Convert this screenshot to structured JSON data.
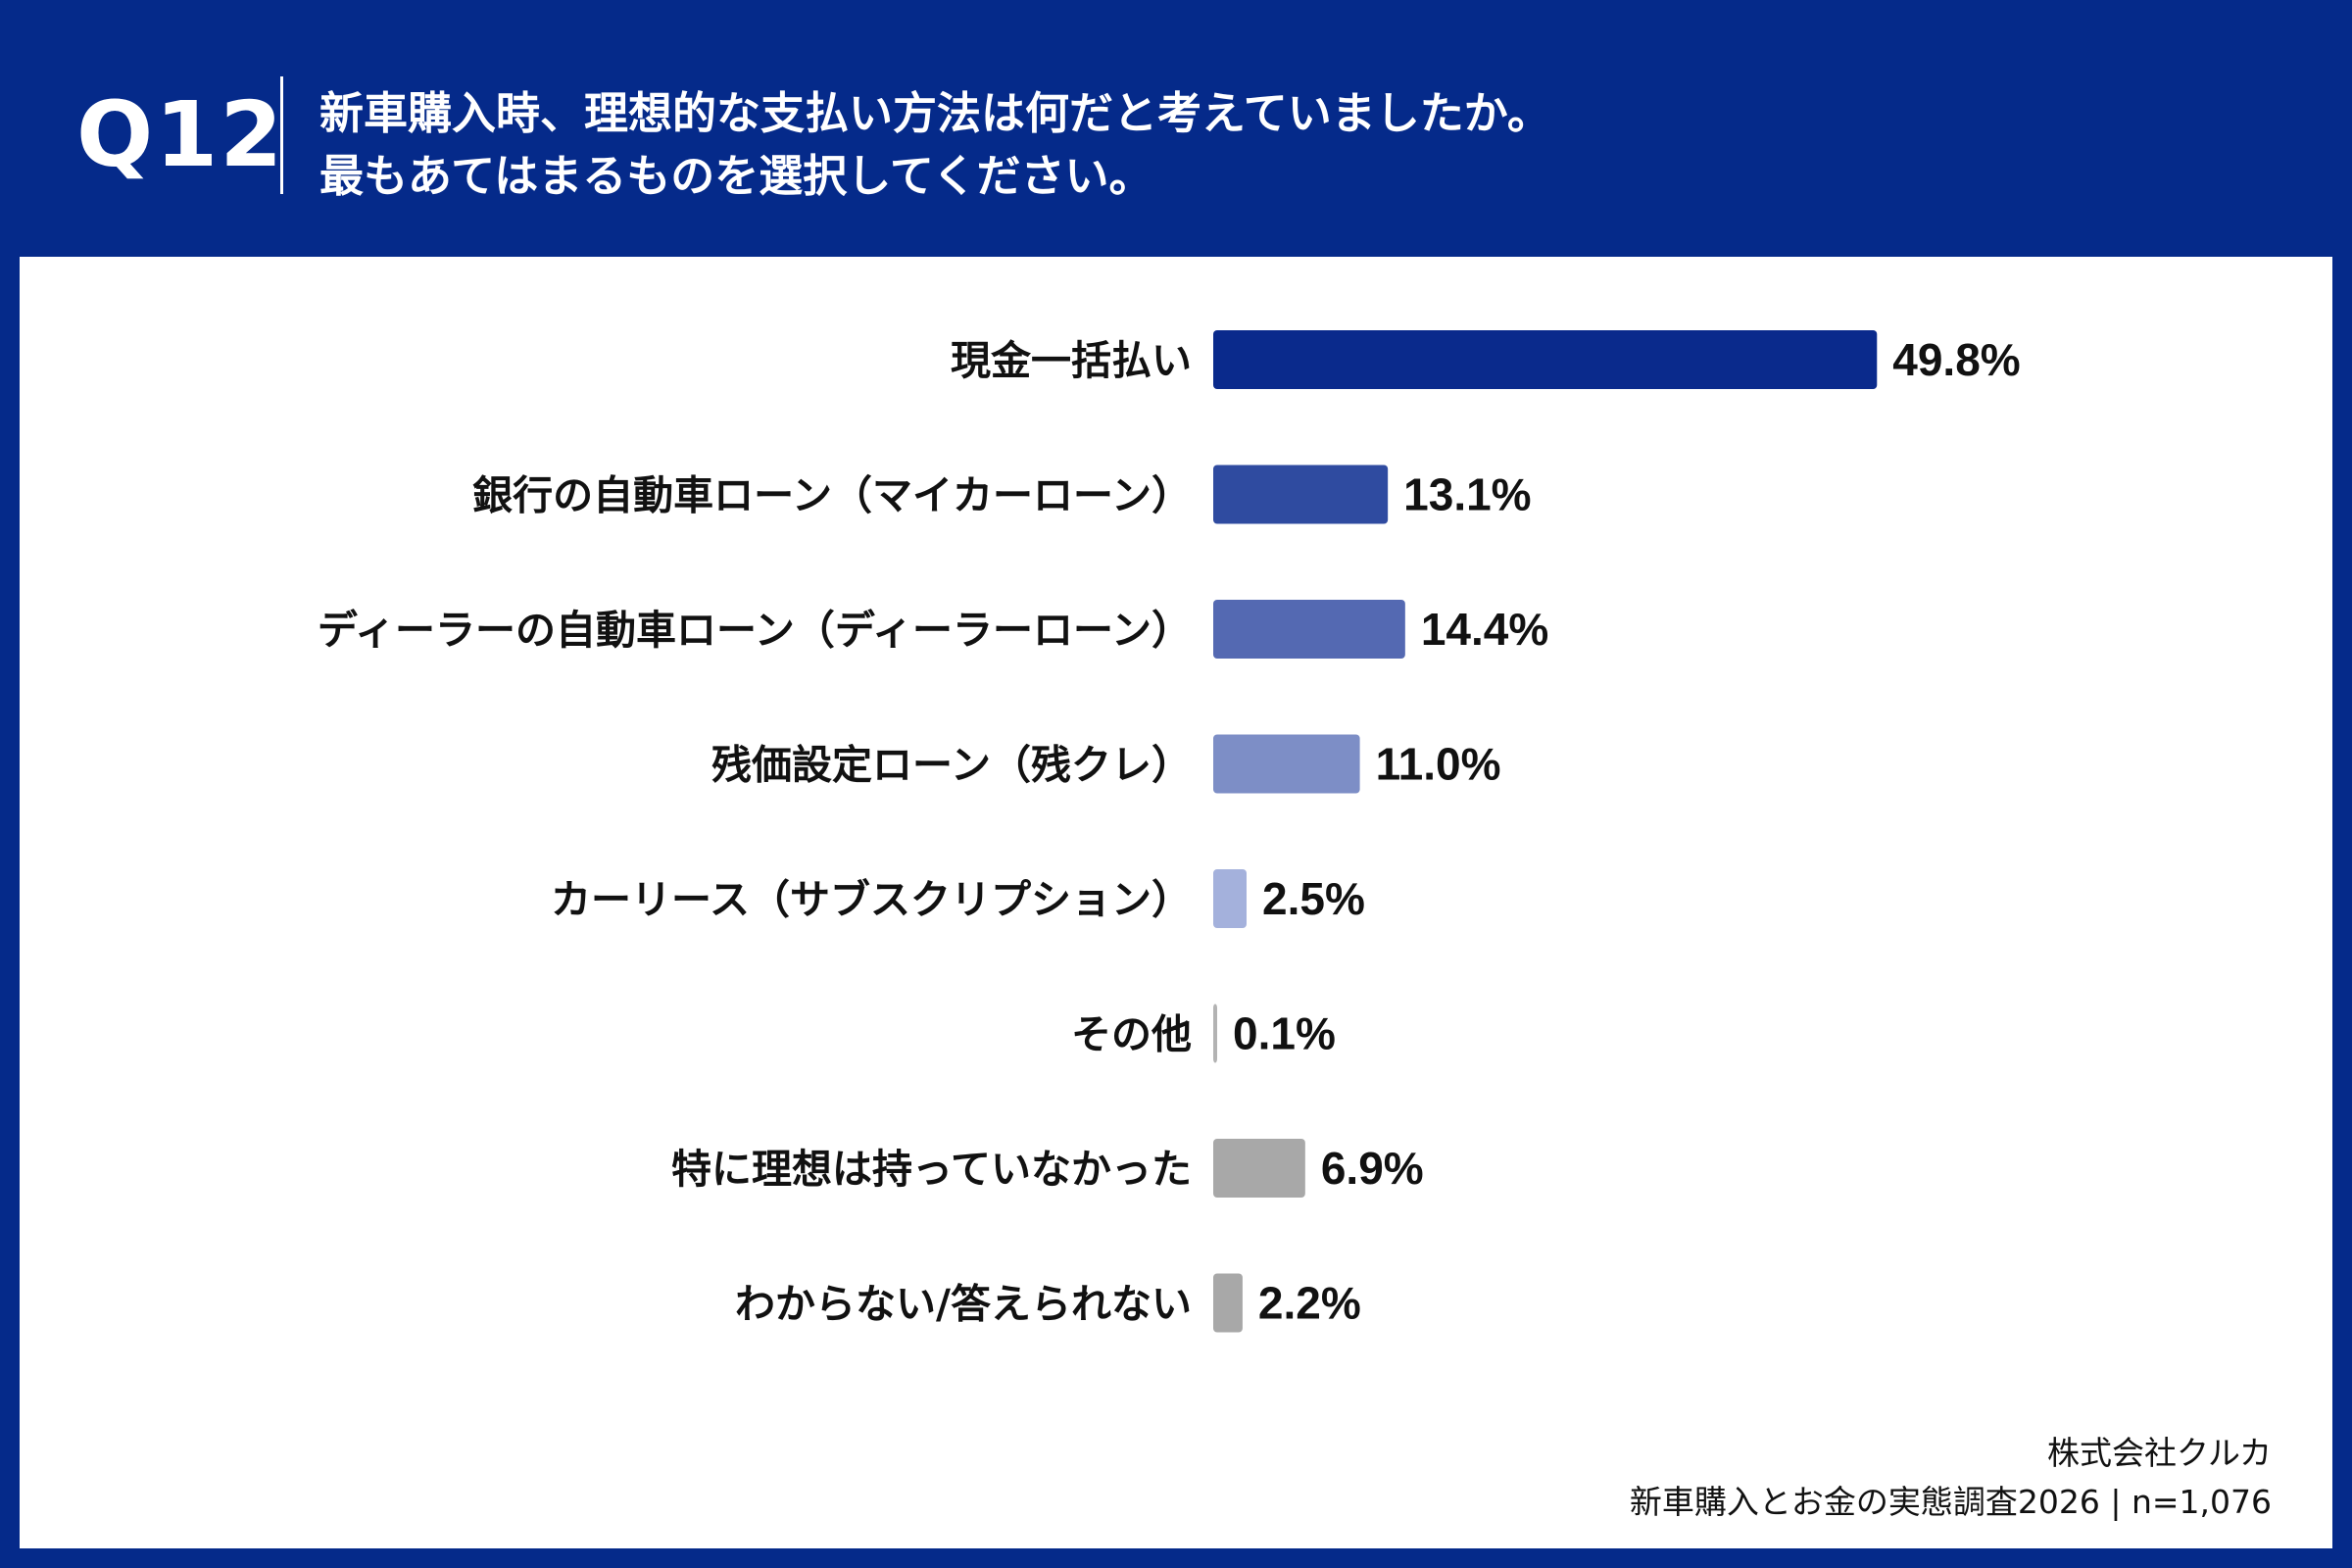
{
  "header": {
    "question_number": "Q12",
    "question_line1": "新車購入時、理想的な支払い方法は何だと考えていましたか。",
    "question_line2": "最もあてはまるものを選択してください。"
  },
  "chart_data": {
    "type": "bar",
    "orientation": "horizontal",
    "categories": [
      "現金一括払い",
      "銀行の自動車ローン（マイカーローン）",
      "ディーラーの自動車ローン（ディーラーローン）",
      "残価設定ローン（残クレ）",
      "カーリース（サブスクリプション）",
      "その他",
      "特に理想は持っていなかった",
      "わからない/答えられない"
    ],
    "values": [
      49.8,
      13.1,
      14.4,
      11.0,
      2.5,
      0.1,
      6.9,
      2.2
    ],
    "value_labels": [
      "49.8%",
      "13.1%",
      "14.4%",
      "11.0%",
      "2.5%",
      "0.1%",
      "6.9%",
      "2.2%"
    ],
    "colors": [
      "#0a2a8c",
      "#2f4ba0",
      "#5469b2",
      "#7d8ec6",
      "#a4b1dc",
      "#b3b3b3",
      "#a8a8a8",
      "#a8a8a8"
    ],
    "xlim": [
      0,
      55
    ],
    "grid": false,
    "legend": "none"
  },
  "footer": {
    "company": "株式会社クルカ",
    "survey": "新車購入とお金の実態調査2026 | n=1,076"
  }
}
